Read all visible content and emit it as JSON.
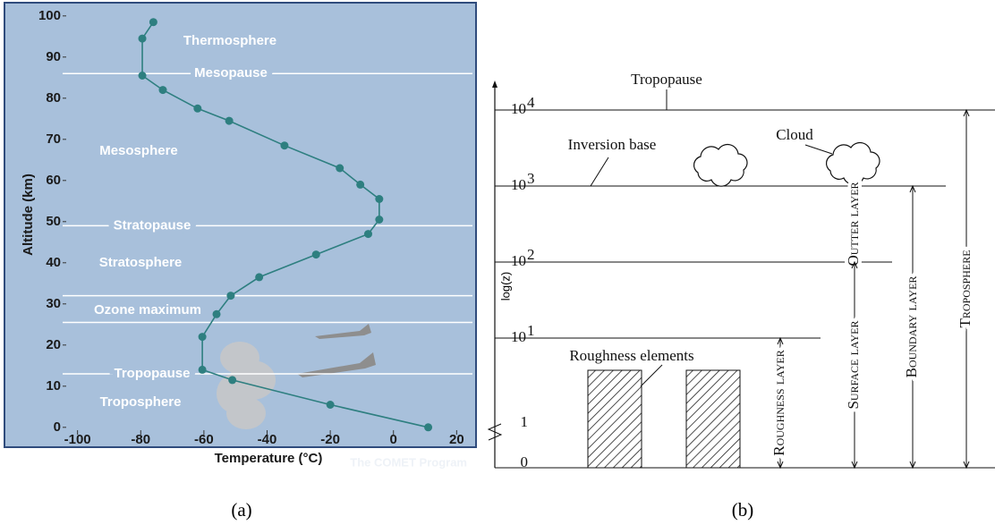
{
  "chart_data": {
    "type": "line",
    "x_label": "Temperature (°C)",
    "y_label": "Altitude (km)",
    "credit": "The COMET Program",
    "x": [
      -76,
      -79.5,
      -79.5,
      -73,
      -62,
      -52,
      -34.5,
      -17,
      -10.5,
      -4.5,
      -4.5,
      -8,
      -24.5,
      -42.5,
      -51.5,
      -56,
      -60.5,
      -60.5,
      -51,
      -20,
      11
    ],
    "series": [
      {
        "color": "#2e7f80",
        "values": [
          98.5,
          94.5,
          85.5,
          82,
          77.5,
          74.5,
          68.5,
          63,
          59,
          55.5,
          50.5,
          47,
          42,
          36.5,
          32,
          27.5,
          22,
          14,
          11.5,
          5.5,
          0
        ]
      }
    ],
    "xlim": [
      -105,
      25
    ],
    "ylim": [
      -2,
      103
    ],
    "xticks": [
      -100,
      -80,
      -60,
      -40,
      -20,
      0,
      20
    ],
    "yticks": [
      0,
      10,
      20,
      30,
      40,
      50,
      60,
      70,
      80,
      90,
      100
    ],
    "reference_lines": [
      {
        "label": "Mesopause",
        "value": 86
      },
      {
        "label": "Stratopause",
        "value": 49
      },
      {
        "value": 32
      },
      {
        "value": 25.5
      },
      {
        "label": "Tropopause",
        "value": 13
      }
    ],
    "region_labels": [
      "Thermosphere",
      "Mesosphere",
      "Stratosphere",
      "Ozone maximum",
      "Troposphere"
    ]
  },
  "diagram": {
    "y_label": "log(z)",
    "ticks_plain": [
      "0",
      "1"
    ],
    "ticks_power": [
      {
        "base": "10",
        "exponent": "1"
      },
      {
        "base": "10",
        "exponent": "2"
      },
      {
        "base": "10",
        "exponent": "3"
      },
      {
        "base": "10",
        "exponent": "4"
      }
    ],
    "labels": {
      "tropopause": "Tropopause",
      "inversion": "Inversion base",
      "cloud": "Cloud",
      "roughness_elements": "Roughness elements"
    },
    "layers": [
      "Outter layer",
      "Surface layer",
      "Roughness layer",
      "Boundary layer",
      "Troposphere"
    ]
  },
  "captions": [
    "(a)",
    "(b)"
  ]
}
